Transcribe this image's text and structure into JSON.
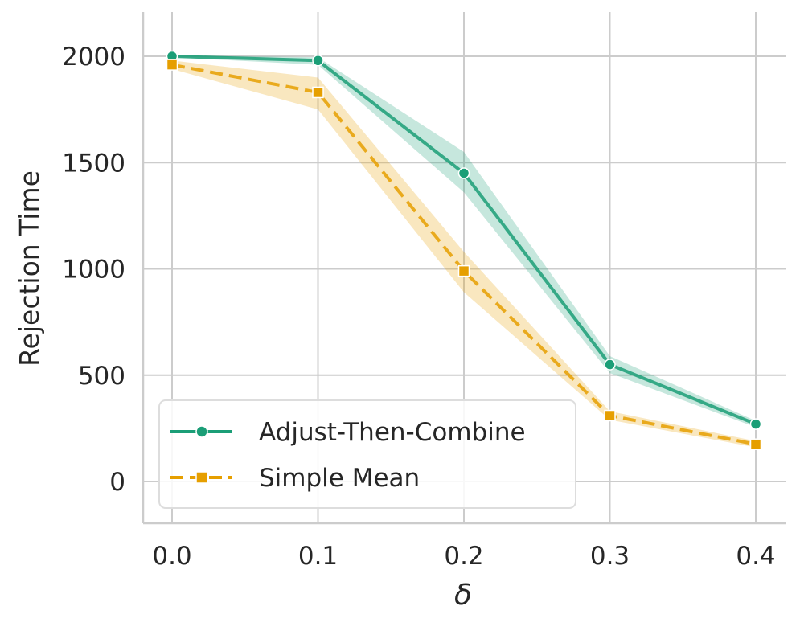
{
  "chart_data": {
    "type": "line",
    "title": "",
    "xlabel": "δ",
    "ylabel": "Rejection Time",
    "x": [
      0.0,
      0.1,
      0.2,
      0.3,
      0.4
    ],
    "x_tick_labels": [
      "0.0",
      "0.1",
      "0.2",
      "0.3",
      "0.4"
    ],
    "y_ticks": [
      0,
      500,
      1000,
      1500,
      2000
    ],
    "y_tick_labels": [
      "0",
      "500",
      "1000",
      "1500",
      "2000"
    ],
    "xlim": [
      -0.02,
      0.42
    ],
    "ylim": [
      -200,
      2200
    ],
    "grid": true,
    "legend_position": "lower-left",
    "series": [
      {
        "name": "Adjust-Then-Combine",
        "color": "#1b9e77",
        "marker": "circle",
        "line_style": "solid",
        "values": [
          2000,
          1980,
          1450,
          550,
          270
        ],
        "ci_lower": [
          1995,
          1960,
          1360,
          510,
          255
        ],
        "ci_upper": [
          2005,
          1995,
          1550,
          590,
          285
        ]
      },
      {
        "name": "Simple Mean",
        "color": "#e69f00",
        "marker": "square",
        "line_style": "dashed",
        "values": [
          1960,
          1830,
          990,
          310,
          175
        ],
        "ci_lower": [
          1940,
          1750,
          890,
          290,
          160
        ],
        "ci_upper": [
          1980,
          1900,
          1080,
          330,
          190
        ]
      }
    ]
  }
}
